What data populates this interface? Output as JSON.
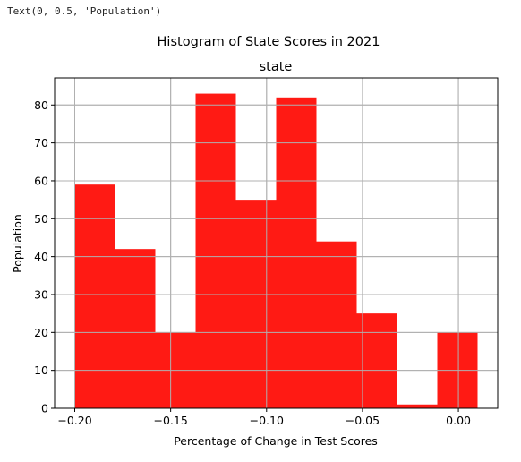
{
  "console": {
    "output_text": "Text(0, 0.5, 'Population')"
  },
  "chart_data": {
    "type": "histogram",
    "title": "Histogram of State Scores in 2021",
    "subplot_title": "state",
    "xlabel": "Percentage of Change in Test Scores",
    "ylabel": "Population",
    "bar_color": "#ff1a14",
    "grid": true,
    "grid_color": "#b0b0b0",
    "xlim": [
      -0.2105,
      0.0205
    ],
    "ylim": [
      0,
      87.15
    ],
    "x_ticks": [
      -0.2,
      -0.15,
      -0.1,
      -0.05,
      0.0
    ],
    "x_tick_labels": [
      "−0.20",
      "−0.15",
      "−0.10",
      "−0.05",
      "0.00"
    ],
    "y_ticks": [
      0,
      10,
      20,
      30,
      40,
      50,
      60,
      70,
      80
    ],
    "y_tick_labels": [
      "0",
      "10",
      "20",
      "30",
      "40",
      "50",
      "60",
      "70",
      "80"
    ],
    "bins": [
      {
        "x0": -0.2,
        "x1": -0.179,
        "count": 59
      },
      {
        "x0": -0.179,
        "x1": -0.158,
        "count": 42
      },
      {
        "x0": -0.158,
        "x1": -0.137,
        "count": 20
      },
      {
        "x0": -0.137,
        "x1": -0.116,
        "count": 83
      },
      {
        "x0": -0.116,
        "x1": -0.095,
        "count": 55
      },
      {
        "x0": -0.095,
        "x1": -0.074,
        "count": 82
      },
      {
        "x0": -0.074,
        "x1": -0.053,
        "count": 44
      },
      {
        "x0": -0.053,
        "x1": -0.032,
        "count": 25
      },
      {
        "x0": -0.032,
        "x1": -0.011,
        "count": 1
      },
      {
        "x0": -0.011,
        "x1": 0.01,
        "count": 20
      }
    ]
  }
}
